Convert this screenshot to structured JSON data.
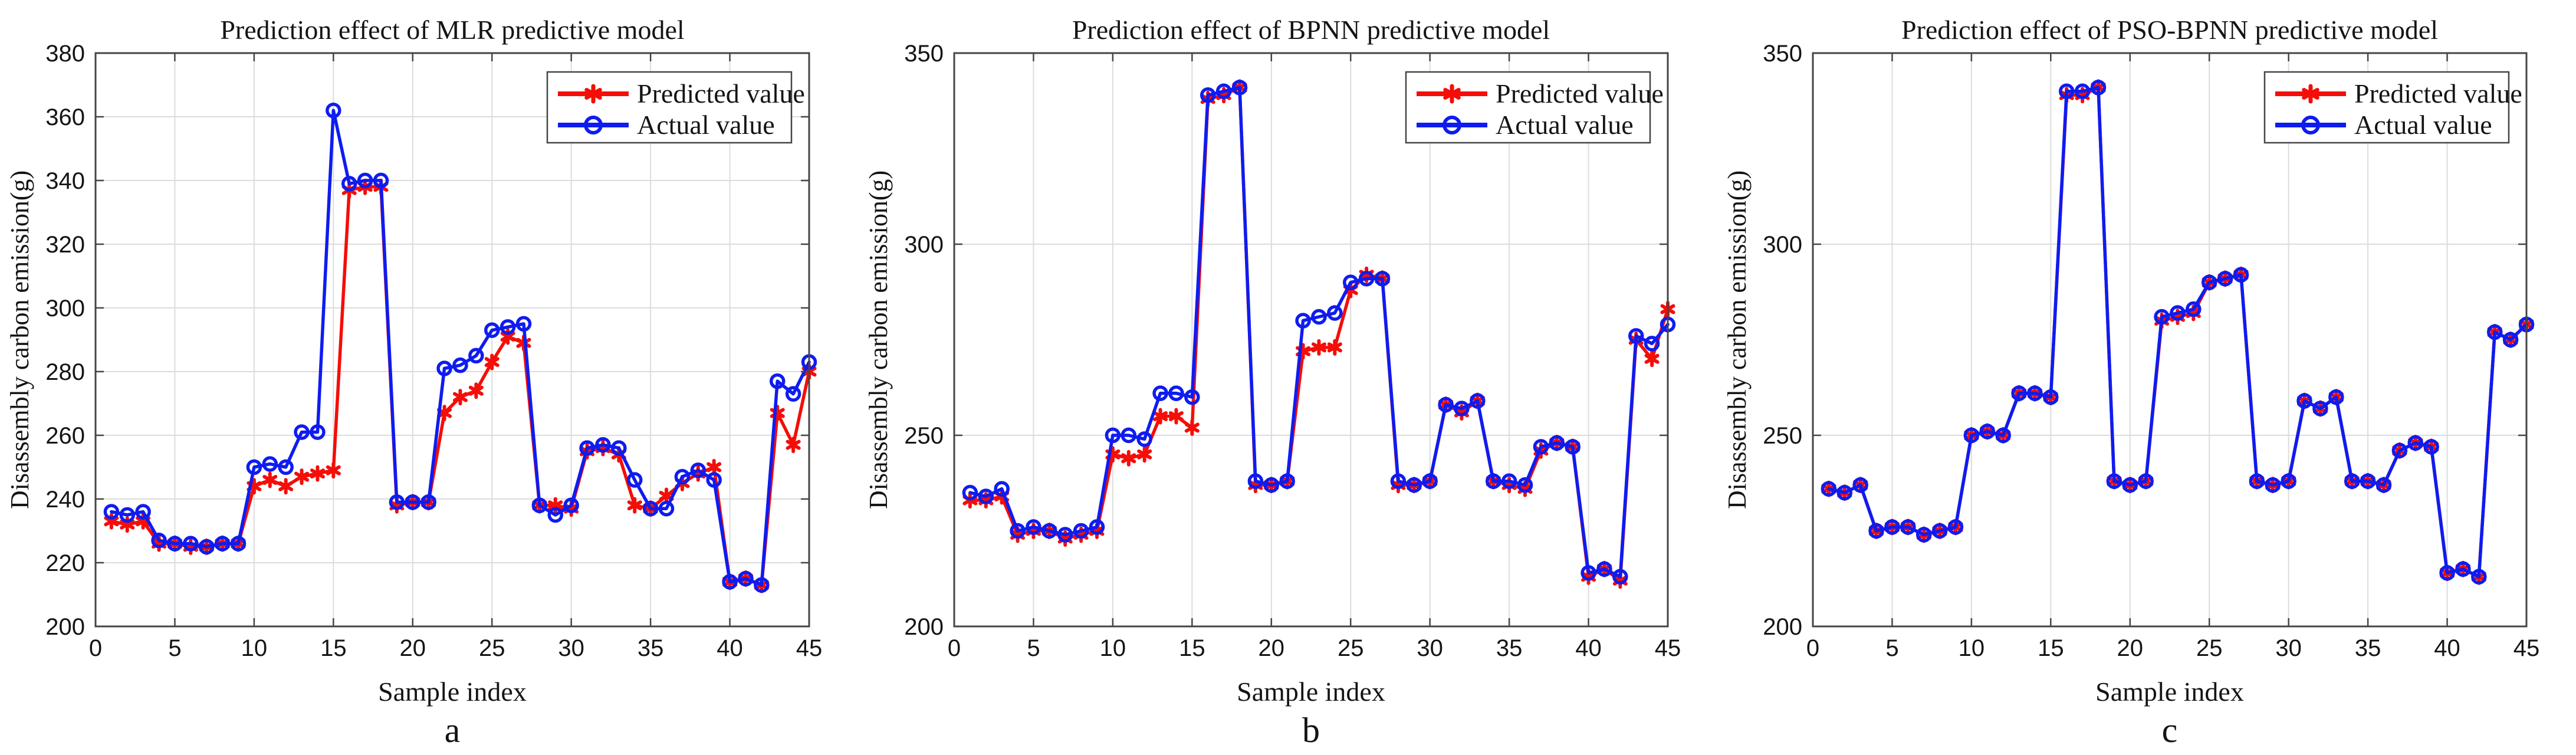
{
  "figure": {
    "colors": {
      "predicted": "#f50d08",
      "actual": "#0e1cf0",
      "grid": "#dcdcdc",
      "axis": "#454545",
      "text": "#141414",
      "background": "#ffffff"
    },
    "legend_labels": {
      "predicted": "Predicted value",
      "actual": "Actual value"
    }
  },
  "chart_data": [
    {
      "type": "line",
      "panel_label": "a",
      "title": "Prediction effect of MLR predictive model",
      "xlabel": "Sample index",
      "ylabel": "Disassembly carbon emission(g)",
      "xlim": [
        0,
        45
      ],
      "ylim": [
        200,
        380
      ],
      "xticks": [
        0,
        5,
        10,
        15,
        20,
        25,
        30,
        35,
        40,
        45
      ],
      "yticks": [
        200,
        220,
        240,
        260,
        280,
        300,
        320,
        340,
        360,
        380
      ],
      "grid": true,
      "legend_position": "top-right",
      "x": [
        1,
        2,
        3,
        4,
        5,
        6,
        7,
        8,
        9,
        10,
        11,
        12,
        13,
        14,
        15,
        16,
        17,
        18,
        19,
        20,
        21,
        22,
        23,
        24,
        25,
        26,
        27,
        28,
        29,
        30,
        31,
        32,
        33,
        34,
        35,
        36,
        37,
        38,
        39,
        40,
        41,
        42,
        43,
        44,
        45
      ],
      "series": [
        {
          "name": "Predicted value",
          "marker": "asterisk",
          "color_key": "predicted",
          "values": [
            233,
            232,
            233,
            226,
            226,
            225,
            225,
            226,
            226,
            244,
            246,
            244,
            247,
            248,
            249,
            337,
            338,
            338,
            238,
            239,
            239,
            267,
            272,
            274,
            283,
            291,
            289,
            238,
            238,
            237,
            255,
            256,
            254,
            238,
            237,
            241,
            245,
            248,
            250,
            214,
            215,
            213,
            267,
            257,
            280
          ]
        },
        {
          "name": "Actual value",
          "marker": "circle",
          "color_key": "actual",
          "values": [
            236,
            235,
            236,
            227,
            226,
            226,
            225,
            226,
            226,
            250,
            251,
            250,
            261,
            261,
            362,
            339,
            340,
            340,
            239,
            239,
            239,
            281,
            282,
            285,
            293,
            294,
            295,
            238,
            235,
            238,
            256,
            257,
            256,
            246,
            237,
            237,
            247,
            249,
            246,
            214,
            215,
            213,
            277,
            273,
            283
          ]
        }
      ]
    },
    {
      "type": "line",
      "panel_label": "b",
      "title": "Prediction effect of BPNN predictive model",
      "xlabel": "Sample index",
      "ylabel": "Disassembly carbon emission(g)",
      "xlim": [
        0,
        45
      ],
      "ylim": [
        200,
        350
      ],
      "xticks": [
        0,
        5,
        10,
        15,
        20,
        25,
        30,
        35,
        40,
        45
      ],
      "yticks": [
        200,
        250,
        300,
        350
      ],
      "grid": true,
      "legend_position": "top-right",
      "x": [
        1,
        2,
        3,
        4,
        5,
        6,
        7,
        8,
        9,
        10,
        11,
        12,
        13,
        14,
        15,
        16,
        17,
        18,
        19,
        20,
        21,
        22,
        23,
        24,
        25,
        26,
        27,
        28,
        29,
        30,
        31,
        32,
        33,
        34,
        35,
        36,
        37,
        38,
        39,
        40,
        41,
        42,
        43,
        44,
        45
      ],
      "series": [
        {
          "name": "Predicted value",
          "marker": "asterisk",
          "color_key": "predicted",
          "values": [
            233,
            233,
            234,
            224,
            225,
            225,
            223,
            224,
            225,
            245,
            244,
            245,
            255,
            255,
            252,
            338,
            339,
            341,
            237,
            237,
            238,
            272,
            273,
            273,
            288,
            292,
            291,
            237,
            237,
            238,
            258,
            256,
            259,
            238,
            237,
            236,
            246,
            248,
            247,
            213,
            215,
            212,
            275,
            270,
            283
          ]
        },
        {
          "name": "Actual value",
          "marker": "circle",
          "color_key": "actual",
          "values": [
            235,
            234,
            236,
            225,
            226,
            225,
            224,
            225,
            226,
            250,
            250,
            249,
            261,
            261,
            260,
            339,
            340,
            341,
            238,
            237,
            238,
            280,
            281,
            282,
            290,
            291,
            291,
            238,
            237,
            238,
            258,
            257,
            259,
            238,
            238,
            237,
            247,
            248,
            247,
            214,
            215,
            213,
            276,
            274,
            279
          ]
        }
      ]
    },
    {
      "type": "line",
      "panel_label": "c",
      "title": "Prediction effect of PSO-BPNN predictive model",
      "xlabel": "Sample index",
      "ylabel": "Disassembly carbon emission(g)",
      "xlim": [
        0,
        45
      ],
      "ylim": [
        200,
        350
      ],
      "xticks": [
        0,
        5,
        10,
        15,
        20,
        25,
        30,
        35,
        40,
        45
      ],
      "yticks": [
        200,
        250,
        300,
        350
      ],
      "grid": true,
      "legend_position": "top-right",
      "x": [
        1,
        2,
        3,
        4,
        5,
        6,
        7,
        8,
        9,
        10,
        11,
        12,
        13,
        14,
        15,
        16,
        17,
        18,
        19,
        20,
        21,
        22,
        23,
        24,
        25,
        26,
        27,
        28,
        29,
        30,
        31,
        32,
        33,
        34,
        35,
        36,
        37,
        38,
        39,
        40,
        41,
        42,
        43,
        44,
        45
      ],
      "series": [
        {
          "name": "Predicted value",
          "marker": "asterisk",
          "color_key": "predicted",
          "values": [
            236,
            235,
            237,
            225,
            226,
            226,
            224,
            225,
            226,
            250,
            251,
            250,
            261,
            261,
            260,
            339,
            339,
            341,
            238,
            237,
            238,
            280,
            281,
            282,
            290,
            291,
            292,
            238,
            237,
            238,
            259,
            257,
            260,
            238,
            238,
            237,
            246,
            248,
            247,
            214,
            215,
            213,
            277,
            275,
            279
          ]
        },
        {
          "name": "Actual value",
          "marker": "circle",
          "color_key": "actual",
          "values": [
            236,
            235,
            237,
            225,
            226,
            226,
            224,
            225,
            226,
            250,
            251,
            250,
            261,
            261,
            260,
            340,
            340,
            341,
            238,
            237,
            238,
            281,
            282,
            283,
            290,
            291,
            292,
            238,
            237,
            238,
            259,
            257,
            260,
            238,
            238,
            237,
            246,
            248,
            247,
            214,
            215,
            213,
            277,
            275,
            279
          ]
        }
      ]
    }
  ]
}
